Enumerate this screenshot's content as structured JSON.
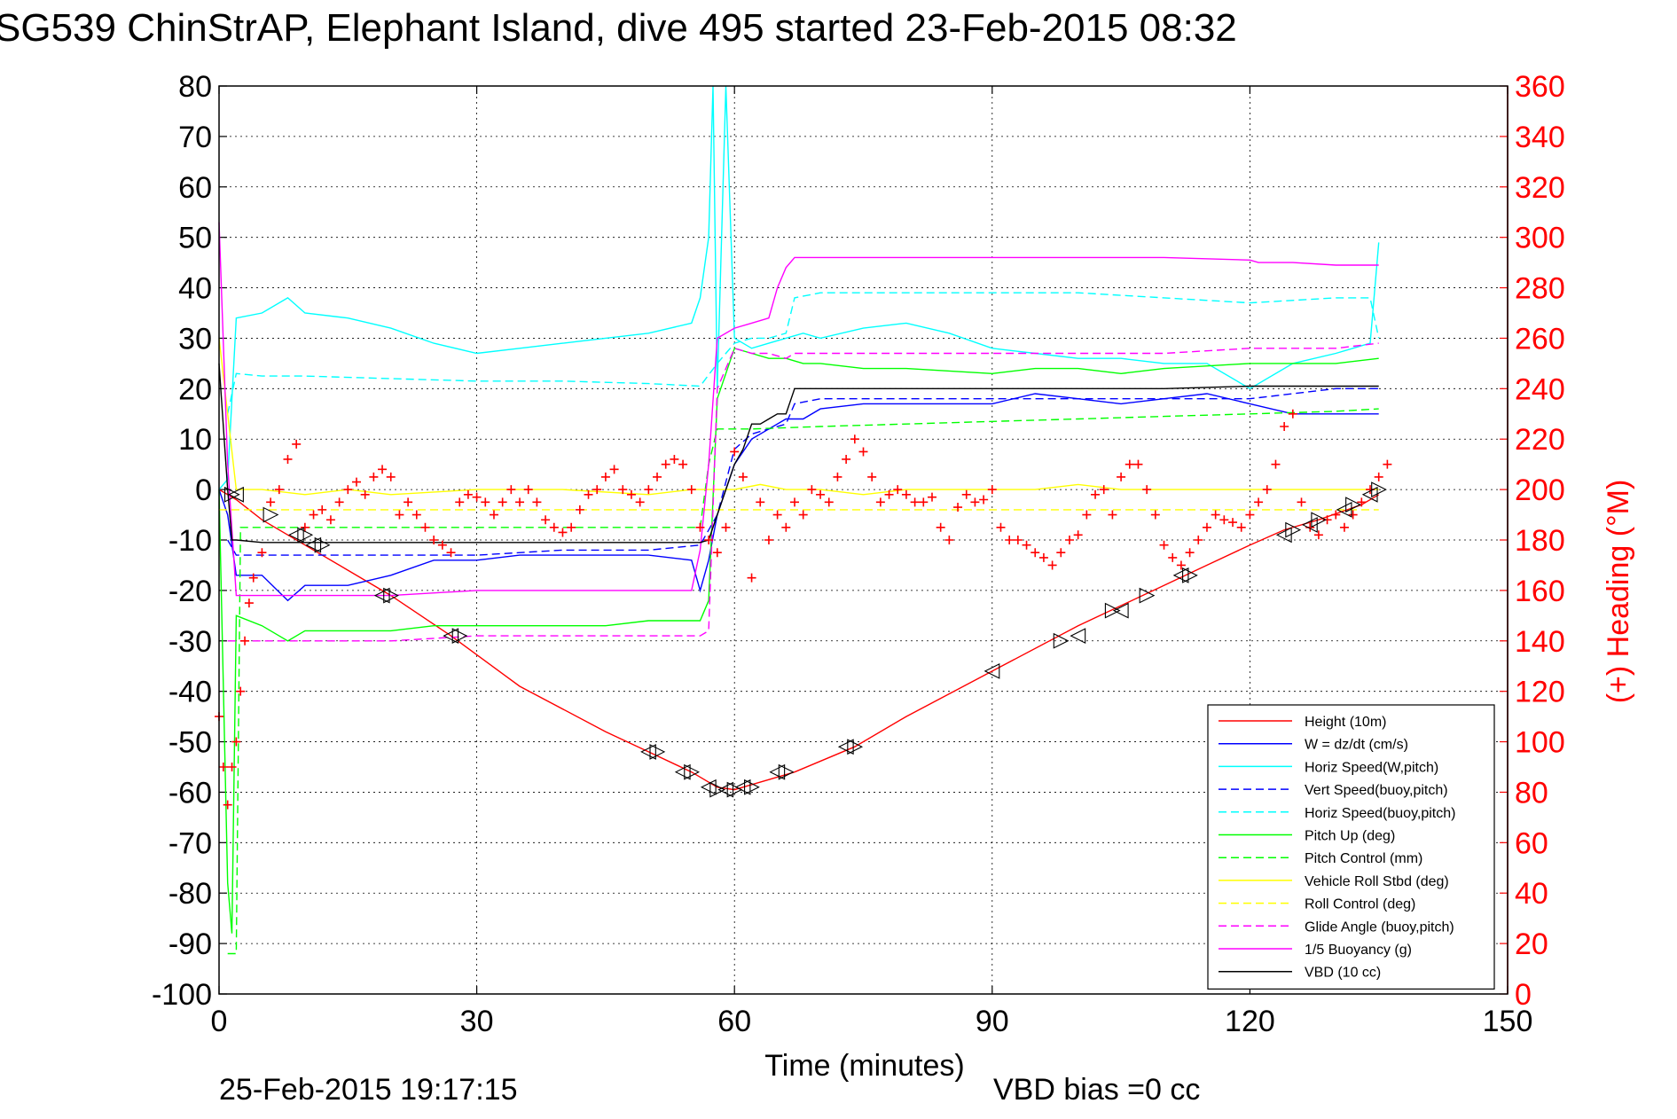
{
  "footer": {
    "timestamp": "25-Feb-2015 19:17:15",
    "vbd_bias": "VBD bias =0 cc"
  },
  "chart_data": {
    "type": "line",
    "title": "SG539 ChinStrAP, Elephant Island, dive 495 started 23-Feb-2015 08:32",
    "xlabel": "Time (minutes)",
    "ylabel": "",
    "ylabel_right": "(+) Heading (°M)",
    "xlim": [
      0,
      150
    ],
    "ylim": [
      -100,
      80
    ],
    "ylim_right": [
      0,
      360
    ],
    "xticks": [
      0,
      30,
      60,
      90,
      120,
      150
    ],
    "yticks": [
      80,
      70,
      60,
      50,
      40,
      30,
      20,
      10,
      0,
      -10,
      -20,
      -30,
      -40,
      -50,
      -60,
      -70,
      -80,
      -90,
      -100
    ],
    "yticks_right": [
      360,
      340,
      320,
      300,
      280,
      260,
      240,
      220,
      200,
      180,
      160,
      140,
      120,
      100,
      80,
      60,
      40,
      20,
      0
    ],
    "grid": true,
    "legend_position": "bottom-right",
    "colors": {
      "height": "#ff0000",
      "w": "#0000ff",
      "horiz_speed": "#00ffff",
      "pitch": "#00ff00",
      "roll": "#ffff00",
      "glide": "#ff00ff",
      "vbd": "#000000",
      "heading": "#ff0000",
      "right_axis": "#ff0000"
    },
    "series": [
      {
        "name": "Height (10m)",
        "style": "solid",
        "color": "#ff0000",
        "x": [
          0,
          2,
          5,
          10,
          15,
          20,
          27,
          35,
          45,
          50,
          55,
          58,
          60,
          63,
          67,
          74,
          80,
          90,
          100,
          105,
          110,
          115,
          120,
          124,
          128,
          133,
          135
        ],
        "y": [
          0,
          -2,
          -6,
          -11,
          -16,
          -21,
          -29,
          -39,
          -48,
          -52,
          -56,
          -59,
          -59.5,
          -58,
          -56,
          -51,
          -45,
          -36,
          -27,
          -23,
          -19,
          -15,
          -11,
          -8,
          -6,
          -3,
          -1
        ]
      },
      {
        "name": "W = dz/dt (cm/s)",
        "style": "solid",
        "color": "#0000ff",
        "x": [
          0,
          1,
          2,
          5,
          8,
          10,
          15,
          20,
          25,
          30,
          35,
          40,
          45,
          50,
          55,
          56,
          57,
          58,
          60,
          62,
          64,
          66,
          68,
          70,
          75,
          80,
          90,
          95,
          100,
          105,
          110,
          115,
          120,
          125,
          130,
          135
        ],
        "y": [
          0,
          -5,
          -17,
          -17,
          -22,
          -19,
          -19,
          -17,
          -14,
          -14,
          -13,
          -13,
          -13,
          -13,
          -14,
          -20,
          -14,
          -5,
          5,
          10,
          12,
          14,
          14,
          16,
          17,
          17,
          17,
          19,
          18,
          17,
          18,
          19,
          17,
          15,
          15,
          15
        ]
      },
      {
        "name": "Horiz Speed(W,pitch)",
        "style": "solid",
        "color": "#00ffff",
        "x": [
          0,
          1,
          2,
          5,
          8,
          10,
          15,
          20,
          25,
          30,
          35,
          40,
          45,
          50,
          55,
          56,
          57,
          57.5,
          58,
          59,
          60,
          62,
          64,
          66,
          68,
          70,
          75,
          80,
          85,
          90,
          95,
          100,
          105,
          110,
          115,
          120,
          125,
          130,
          134,
          135
        ],
        "y": [
          0,
          2,
          34,
          35,
          38,
          35,
          34,
          32,
          29,
          27,
          28,
          29,
          30,
          31,
          33,
          38,
          50,
          80,
          20,
          80,
          30,
          28,
          29,
          30,
          31,
          30,
          32,
          33,
          31,
          28,
          27,
          26,
          26,
          25,
          25,
          20,
          25,
          27,
          29,
          49
        ]
      },
      {
        "name": "Vert Speed(buoy,pitch)",
        "style": "dashed",
        "color": "#0000ff",
        "x": [
          1,
          2,
          5,
          10,
          20,
          30,
          40,
          50,
          56,
          58,
          60,
          62,
          64,
          66,
          67,
          70,
          80,
          90,
          100,
          110,
          120,
          125,
          130,
          135
        ],
        "y": [
          -10,
          -13,
          -13,
          -13,
          -13,
          -13,
          -12,
          -12,
          -11,
          -5,
          8,
          11,
          12,
          13,
          17,
          18,
          18,
          18,
          18,
          18,
          18,
          19,
          20,
          20
        ]
      },
      {
        "name": "Horiz Speed(buoy,pitch)",
        "style": "dashed",
        "color": "#00ffff",
        "x": [
          1,
          2,
          5,
          10,
          20,
          30,
          40,
          50,
          56,
          58,
          60,
          62,
          64,
          66,
          67,
          70,
          80,
          90,
          100,
          110,
          120,
          130,
          134,
          135
        ],
        "y": [
          15,
          23,
          22.5,
          22.5,
          22,
          21.5,
          21.5,
          21,
          20.5,
          25,
          29,
          30,
          30,
          31,
          38,
          39,
          39,
          39,
          39,
          38,
          37,
          38,
          38,
          30
        ]
      },
      {
        "name": "Pitch Up (deg)",
        "style": "solid",
        "color": "#00ff00",
        "x": [
          0,
          1,
          1.5,
          2,
          5,
          8,
          10,
          15,
          20,
          25,
          30,
          35,
          40,
          45,
          50,
          55,
          56,
          57,
          58,
          60,
          62,
          64,
          66,
          68,
          70,
          75,
          80,
          90,
          95,
          100,
          105,
          110,
          120,
          125,
          130,
          135
        ],
        "y": [
          0,
          -78,
          -88,
          -25,
          -27,
          -30,
          -28,
          -28,
          -28,
          -27,
          -27,
          -27,
          -27,
          -27,
          -26,
          -26,
          -26,
          -22,
          18,
          28,
          27,
          26,
          26,
          25,
          25,
          24,
          24,
          23,
          24,
          24,
          23,
          24,
          25,
          25,
          25,
          26
        ]
      },
      {
        "name": "Pitch Control (mm)",
        "style": "dashed",
        "color": "#00ff00",
        "x": [
          1,
          2,
          2.5,
          5,
          10,
          20,
          30,
          40,
          50,
          55,
          56,
          57,
          58,
          60,
          62,
          70,
          80,
          90,
          100,
          110,
          120,
          130,
          135
        ],
        "y": [
          -92,
          -92,
          -7.5,
          -7.5,
          -7.5,
          -7.5,
          -7.5,
          -7.5,
          -7.5,
          -7.5,
          -7.5,
          5,
          12,
          12,
          12,
          12.5,
          13,
          13.5,
          14,
          14.5,
          15,
          15.5,
          16
        ]
      },
      {
        "name": "Vehicle Roll Stbd (deg)",
        "style": "solid",
        "color": "#ffff00",
        "x": [
          0,
          2,
          5,
          10,
          15,
          20,
          30,
          40,
          50,
          55,
          58,
          60,
          63,
          66,
          70,
          75,
          80,
          90,
          95,
          100,
          105,
          110,
          115,
          120,
          125,
          130,
          135
        ],
        "y": [
          30,
          0,
          0,
          -1,
          0,
          -1,
          0,
          0,
          -1,
          0,
          0,
          0,
          1,
          0,
          0,
          -1,
          0,
          0,
          0,
          1,
          0,
          0,
          0,
          0,
          0,
          0,
          0
        ]
      },
      {
        "name": "Roll Control (deg)",
        "style": "dashed",
        "color": "#ffff00",
        "x": [
          0,
          5,
          10,
          20,
          30,
          40,
          50,
          60,
          70,
          80,
          90,
          100,
          110,
          120,
          130,
          135
        ],
        "y": [
          -4,
          -4,
          -4,
          -4,
          -4,
          -4,
          -4,
          -4,
          -4,
          -4,
          -4,
          -4,
          -4,
          -4,
          -4,
          -4
        ]
      },
      {
        "name": "Glide Angle (buoy,pitch)",
        "style": "dashed",
        "color": "#ff00ff",
        "x": [
          1,
          2,
          5,
          10,
          20,
          30,
          40,
          50,
          55,
          56,
          57,
          58,
          60,
          62,
          64,
          66,
          67,
          70,
          80,
          90,
          100,
          110,
          120,
          130,
          135
        ],
        "y": [
          -30,
          -30,
          -30,
          -30,
          -30,
          -29,
          -29,
          -29,
          -29,
          -29,
          -28,
          20,
          28,
          27,
          27,
          26,
          27,
          27,
          27,
          27,
          27,
          27,
          28,
          28,
          29
        ]
      },
      {
        "name": "1/5 Buoyancy (g)",
        "style": "solid",
        "color": "#ff00ff",
        "x": [
          0,
          1,
          2,
          5,
          10,
          20,
          30,
          40,
          50,
          55,
          56,
          57,
          58,
          60,
          62,
          64,
          65,
          66,
          67,
          70,
          80,
          90,
          100,
          110,
          120,
          121,
          125,
          130,
          135
        ],
        "y": [
          53,
          5,
          -21,
          -21,
          -21,
          -21,
          -20,
          -20,
          -20,
          -20,
          -12,
          5,
          30,
          32,
          33,
          34,
          40,
          44,
          46,
          46,
          46,
          46,
          46,
          46,
          45.5,
          45,
          45,
          44.5,
          44.5
        ]
      },
      {
        "name": "VBD (10 cc)",
        "style": "solid",
        "color": "#000000",
        "x": [
          0,
          1,
          1.5,
          2,
          5,
          10,
          20,
          30,
          40,
          50,
          55,
          56,
          57,
          58,
          60,
          61,
          62,
          63,
          64,
          65,
          66,
          67,
          70,
          80,
          90,
          100,
          110,
          120,
          130,
          135
        ],
        "y": [
          25,
          0,
          -10,
          -10,
          -10.5,
          -10.5,
          -10.5,
          -10.5,
          -10.5,
          -10.5,
          -10.5,
          -10.5,
          -10,
          -5,
          5,
          8,
          13,
          13,
          14,
          15,
          15,
          20,
          20,
          20,
          20,
          20,
          20,
          20.5,
          20.5,
          20.5
        ]
      }
    ],
    "heading": {
      "axis": "right",
      "marker": "+",
      "color": "#ff0000",
      "x": [
        0,
        0.5,
        1,
        1.5,
        2,
        2.5,
        3,
        3.5,
        4,
        5,
        6,
        7,
        8,
        9,
        10,
        11,
        12,
        13,
        14,
        15,
        16,
        17,
        18,
        19,
        20,
        21,
        22,
        23,
        24,
        25,
        26,
        27,
        28,
        29,
        30,
        31,
        32,
        33,
        34,
        35,
        36,
        37,
        38,
        39,
        40,
        41,
        42,
        43,
        44,
        45,
        46,
        47,
        48,
        49,
        50,
        51,
        52,
        53,
        54,
        55,
        56,
        57,
        58,
        59,
        60,
        61,
        62,
        63,
        64,
        65,
        66,
        67,
        68,
        69,
        70,
        71,
        72,
        73,
        74,
        75,
        76,
        77,
        78,
        79,
        80,
        81,
        82,
        83,
        84,
        85,
        86,
        87,
        88,
        89,
        90,
        91,
        92,
        93,
        94,
        95,
        96,
        97,
        98,
        99,
        100,
        101,
        102,
        103,
        104,
        105,
        106,
        107,
        108,
        109,
        110,
        111,
        112,
        113,
        114,
        115,
        116,
        117,
        118,
        119,
        120,
        121,
        122,
        123,
        124,
        125,
        126,
        127,
        128,
        129,
        130,
        131,
        132,
        133,
        134,
        135,
        136
      ],
      "y": [
        110,
        90,
        75,
        90,
        100,
        120,
        140,
        155,
        165,
        175,
        195,
        200,
        212,
        218,
        185,
        190,
        192,
        188,
        195,
        200,
        203,
        198,
        205,
        208,
        205,
        190,
        195,
        190,
        185,
        180,
        178,
        175,
        195,
        198,
        197,
        195,
        190,
        195,
        200,
        195,
        200,
        195,
        188,
        185,
        183,
        185,
        192,
        198,
        200,
        205,
        208,
        200,
        198,
        195,
        200,
        205,
        210,
        212,
        210,
        200,
        185,
        180,
        175,
        185,
        215,
        205,
        165,
        195,
        180,
        190,
        185,
        195,
        190,
        200,
        198,
        195,
        205,
        212,
        220,
        215,
        205,
        195,
        198,
        200,
        198,
        195,
        195,
        197,
        185,
        180,
        193,
        198,
        195,
        196,
        200,
        185,
        180,
        180,
        178,
        175,
        173,
        170,
        175,
        180,
        182,
        190,
        198,
        200,
        190,
        205,
        210,
        210,
        200,
        190,
        178,
        173,
        170,
        175,
        180,
        185,
        190,
        188,
        187,
        185,
        190,
        195,
        200,
        210,
        225,
        230,
        195,
        185,
        182,
        188,
        190,
        185,
        190,
        195,
        200,
        205,
        210
      ]
    },
    "waypoints": {
      "marker": "triangle",
      "color": "#000000",
      "x": [
        1.5,
        2,
        6,
        9,
        10,
        11,
        12,
        19,
        20,
        27,
        28,
        50,
        51,
        54,
        55,
        57,
        58,
        59,
        60,
        61,
        62,
        65,
        66,
        73,
        74,
        90,
        98,
        100,
        104,
        105,
        108,
        112,
        113,
        124,
        125,
        127,
        128,
        131,
        132,
        134,
        135
      ],
      "y": [
        -1,
        -1,
        -5,
        -9,
        -9,
        -11,
        -11,
        -21,
        -21,
        -29,
        -29,
        -52,
        -52,
        -56,
        -56,
        -59,
        -59.5,
        -59.5,
        -59.5,
        -59,
        -59,
        -56,
        -56,
        -51,
        -51,
        -36,
        -30,
        -29,
        -24,
        -24,
        -21,
        -17,
        -17,
        -9,
        -8,
        -7,
        -6,
        -4,
        -3,
        -1,
        0
      ]
    }
  }
}
